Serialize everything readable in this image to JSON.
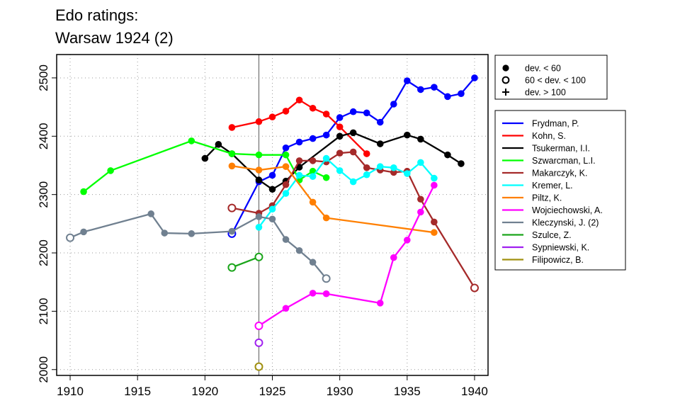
{
  "chart_data": {
    "type": "line",
    "title_lines": [
      "Edo ratings:",
      "Warsaw 1924 (2)"
    ],
    "xlabel": "",
    "ylabel": "",
    "xlim": [
      1909,
      1941
    ],
    "ylim": [
      1990,
      2540
    ],
    "x_ticks": [
      1910,
      1915,
      1920,
      1925,
      1930,
      1935,
      1940
    ],
    "y_ticks": [
      2000,
      2100,
      2200,
      2300,
      2400,
      2500
    ],
    "grid": "dotted",
    "reference_line_x": 1924,
    "marker_legend": [
      {
        "label": "dev. < 60",
        "marker": "filled-circle"
      },
      {
        "label": "60 < dev. < 100",
        "marker": "open-circle"
      },
      {
        "label": "dev. > 100",
        "marker": "plus"
      }
    ],
    "series": [
      {
        "name": "Frydman, P.",
        "color": "#0000FF",
        "points": [
          [
            1922,
            2233,
            "o"
          ],
          [
            1924,
            2322,
            "f"
          ],
          [
            1925,
            2333,
            "f"
          ],
          [
            1926,
            2380,
            "f"
          ],
          [
            1927,
            2390,
            "f"
          ],
          [
            1928,
            2396,
            "f"
          ],
          [
            1929,
            2402,
            "f"
          ],
          [
            1930,
            2432,
            "f"
          ],
          [
            1931,
            2442,
            "f"
          ],
          [
            1932,
            2440,
            "f"
          ],
          [
            1933,
            2424,
            "f"
          ],
          [
            1934,
            2455,
            "f"
          ],
          [
            1935,
            2495,
            "f"
          ],
          [
            1936,
            2480,
            "f"
          ],
          [
            1937,
            2484,
            "f"
          ],
          [
            1938,
            2468,
            "f"
          ],
          [
            1939,
            2473,
            "f"
          ],
          [
            1940,
            2500,
            "f"
          ]
        ]
      },
      {
        "name": "Kohn, S.",
        "color": "#FF0000",
        "points": [
          [
            1922,
            2415,
            "f"
          ],
          [
            1924,
            2425,
            "f"
          ],
          [
            1925,
            2433,
            "f"
          ],
          [
            1926,
            2443,
            "f"
          ],
          [
            1927,
            2462,
            "f"
          ],
          [
            1928,
            2448,
            "f"
          ],
          [
            1929,
            2438,
            "f"
          ],
          [
            1930,
            2416,
            "f"
          ],
          [
            1932,
            2370,
            "f"
          ]
        ]
      },
      {
        "name": "Tsukerman, I.I.",
        "color": "#000000",
        "points": [
          [
            1920,
            2362,
            "f"
          ],
          [
            1921,
            2386,
            "f"
          ],
          [
            1922,
            2370,
            "f"
          ],
          [
            1924,
            2325,
            "f"
          ],
          [
            1925,
            2309,
            "f"
          ],
          [
            1926,
            2323,
            "f"
          ],
          [
            1927,
            2347,
            "f"
          ],
          [
            1930,
            2400,
            "f"
          ],
          [
            1931,
            2406,
            "f"
          ],
          [
            1933,
            2387,
            "f"
          ],
          [
            1935,
            2402,
            "f"
          ],
          [
            1936,
            2395,
            "f"
          ],
          [
            1938,
            2368,
            "f"
          ],
          [
            1939,
            2353,
            "f"
          ]
        ]
      },
      {
        "name": "Szwarcman, L.I.",
        "color": "#00FF00",
        "points": [
          [
            1911,
            2305,
            "f"
          ],
          [
            1913,
            2341,
            "f"
          ],
          [
            1919,
            2392,
            "f"
          ],
          [
            1922,
            2370,
            "f"
          ],
          [
            1924,
            2368,
            "f"
          ],
          [
            1926,
            2368,
            "f"
          ],
          [
            1927,
            2325,
            "f"
          ],
          [
            1928,
            2340,
            "f"
          ],
          [
            1929,
            2329,
            "f"
          ]
        ]
      },
      {
        "name": "Makarczyk, K.",
        "color": "#A52A2A",
        "points": [
          [
            1922,
            2277,
            "o"
          ],
          [
            1924,
            2268,
            "f"
          ],
          [
            1925,
            2281,
            "f"
          ],
          [
            1926,
            2317,
            "f"
          ],
          [
            1927,
            2358,
            "f"
          ],
          [
            1928,
            2358,
            "f"
          ],
          [
            1929,
            2356,
            "f"
          ],
          [
            1930,
            2371,
            "f"
          ],
          [
            1931,
            2373,
            "f"
          ],
          [
            1932,
            2346,
            "f"
          ],
          [
            1933,
            2342,
            "f"
          ],
          [
            1934,
            2338,
            "f"
          ],
          [
            1935,
            2340,
            "f"
          ],
          [
            1936,
            2292,
            "f"
          ],
          [
            1937,
            2253,
            "f"
          ],
          [
            1940,
            2140,
            "o"
          ]
        ]
      },
      {
        "name": "Kremer, L.",
        "color": "#00FFFF",
        "points": [
          [
            1924,
            2244,
            "f"
          ],
          [
            1925,
            2275,
            "f"
          ],
          [
            1926,
            2302,
            "f"
          ],
          [
            1927,
            2333,
            "f"
          ],
          [
            1928,
            2331,
            "f"
          ],
          [
            1929,
            2362,
            "f"
          ],
          [
            1930,
            2341,
            "f"
          ],
          [
            1931,
            2322,
            "f"
          ],
          [
            1932,
            2334,
            "f"
          ],
          [
            1933,
            2348,
            "f"
          ],
          [
            1934,
            2346,
            "f"
          ],
          [
            1935,
            2336,
            "f"
          ],
          [
            1936,
            2355,
            "f"
          ],
          [
            1937,
            2328,
            "f"
          ]
        ]
      },
      {
        "name": "Piltz, K.",
        "color": "#FF7F00",
        "points": [
          [
            1922,
            2349,
            "f"
          ],
          [
            1924,
            2342,
            "f"
          ],
          [
            1926,
            2348,
            "f"
          ],
          [
            1928,
            2287,
            "f"
          ],
          [
            1929,
            2260,
            "f"
          ],
          [
            1937,
            2235,
            "f"
          ]
        ]
      },
      {
        "name": "Wojciechowski, A.",
        "color": "#FF00FF",
        "points": [
          [
            1924,
            2075,
            "o"
          ],
          [
            1926,
            2105,
            "f"
          ],
          [
            1928,
            2131,
            "f"
          ],
          [
            1929,
            2130,
            "f"
          ],
          [
            1933,
            2114,
            "f"
          ],
          [
            1934,
            2192,
            "f"
          ],
          [
            1935,
            2222,
            "f"
          ],
          [
            1936,
            2270,
            "f"
          ],
          [
            1937,
            2316,
            "f"
          ]
        ]
      },
      {
        "name": "Kleczynski, J. (2)",
        "color": "#708090",
        "points": [
          [
            1910,
            2226,
            "o"
          ],
          [
            1911,
            2236,
            "f"
          ],
          [
            1916,
            2267,
            "f"
          ],
          [
            1917,
            2234,
            "f"
          ],
          [
            1919,
            2233,
            "f"
          ],
          [
            1922,
            2237,
            "f"
          ],
          [
            1924,
            2262,
            "f"
          ],
          [
            1925,
            2258,
            "f"
          ],
          [
            1926,
            2223,
            "f"
          ],
          [
            1927,
            2204,
            "f"
          ],
          [
            1928,
            2184,
            "f"
          ],
          [
            1929,
            2156,
            "o"
          ]
        ]
      },
      {
        "name": "Szulce, Z.",
        "color": "#1AA51A",
        "points": [
          [
            1922,
            2175,
            "o"
          ],
          [
            1924,
            2193,
            "o"
          ]
        ]
      },
      {
        "name": "Sypniewski, K.",
        "color": "#A020F0",
        "points": [
          [
            1924,
            2046,
            "o"
          ]
        ]
      },
      {
        "name": "Filipowicz, B.",
        "color": "#A09010",
        "points": [
          [
            1924,
            2005,
            "o"
          ]
        ]
      }
    ]
  }
}
